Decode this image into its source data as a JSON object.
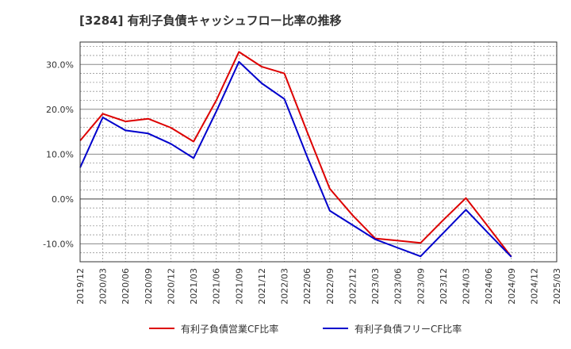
{
  "chart_data": {
    "type": "line",
    "title": "[3284]  有利子負債キャッシュフロー比率の推移",
    "xlabel": "",
    "ylabel": "",
    "x": [
      "2019/12",
      "2020/03",
      "2020/06",
      "2020/09",
      "2020/12",
      "2021/03",
      "2021/06",
      "2021/09",
      "2021/12",
      "2022/03",
      "2022/06",
      "2022/09",
      "2022/12",
      "2023/03",
      "2023/06",
      "2023/09",
      "2023/12",
      "2024/03",
      "2024/06",
      "2024/09",
      "2024/12",
      "2025/03"
    ],
    "ylim": [
      -14,
      35
    ],
    "yticks": [
      -10,
      0,
      10,
      20,
      30
    ],
    "ytick_labels": [
      "-10.0%",
      "0.0%",
      "10.0%",
      "20.0%",
      "30.0%"
    ],
    "grid": true,
    "legend_position": "bottom",
    "series": [
      {
        "name": "有利子負債営業CF比率",
        "color": "#dd0000",
        "values": [
          13.0,
          19.0,
          17.3,
          17.9,
          15.9,
          12.8,
          22.0,
          32.8,
          29.5,
          28.0,
          15.0,
          2.3,
          -3.6,
          -8.8,
          -9.3,
          -9.8,
          -4.7,
          0.2,
          -6.3,
          -12.9,
          null,
          null
        ]
      },
      {
        "name": "有利子負債フリーCF比率",
        "color": "#0000cc",
        "values": [
          7.0,
          18.2,
          15.3,
          14.6,
          12.3,
          9.1,
          19.5,
          30.6,
          25.8,
          22.3,
          9.5,
          -2.6,
          -5.8,
          -9.0,
          -10.9,
          -12.8,
          -7.6,
          -2.4,
          -7.7,
          -12.9,
          null,
          null
        ]
      }
    ]
  }
}
